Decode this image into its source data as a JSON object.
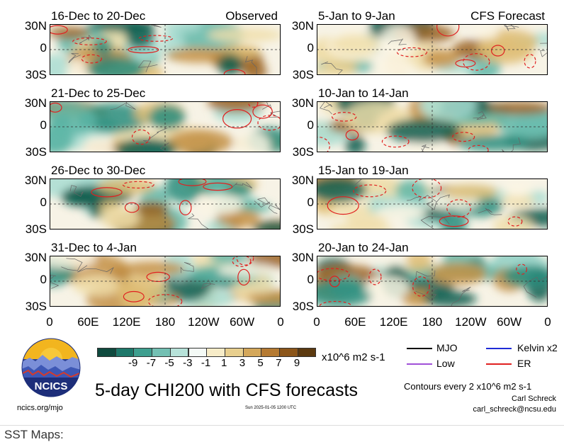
{
  "panels": [
    {
      "title": "16-Dec to 20-Dec",
      "tag": "Observed"
    },
    {
      "title": "5-Jan to 9-Jan",
      "tag": "CFS Forecast"
    },
    {
      "title": "21-Dec to 25-Dec",
      "tag": ""
    },
    {
      "title": "10-Jan to 14-Jan",
      "tag": ""
    },
    {
      "title": "26-Dec to 30-Dec",
      "tag": ""
    },
    {
      "title": "15-Jan to 19-Jan",
      "tag": ""
    },
    {
      "title": "31-Dec to 4-Jan",
      "tag": ""
    },
    {
      "title": "20-Jan to 24-Jan",
      "tag": ""
    }
  ],
  "y_ticks": [
    "30N",
    "0",
    "30S"
  ],
  "x_ticks": [
    "0",
    "60E",
    "120E",
    "180",
    "120W",
    "60W",
    "0"
  ],
  "colorbar": {
    "colors": [
      "#3b2a0c",
      "#0f5e4f",
      "#2a8d7e",
      "#5fb7a8",
      "#a9ddd2",
      "#e8f5f1",
      "#fbf6e4",
      "#f0deaa",
      "#dfbd74",
      "#c49044",
      "#9c6524",
      "#6a4112"
    ],
    "colors_order_note": "",
    "labels": [
      "-9",
      "-7",
      "-5",
      "-3",
      "-1",
      "1",
      "3",
      "5",
      "7",
      "9"
    ],
    "units": "x10^6 m2 s-1"
  },
  "legend": [
    {
      "label": "MJO",
      "color": "#000000"
    },
    {
      "label": "Kelvin x2",
      "color": "#1f2bd6"
    },
    {
      "label": "Low",
      "color": "#a050d8"
    },
    {
      "label": "ER",
      "color": "#e02020"
    }
  ],
  "main_title": "5-day CHI200 with CFS forecasts",
  "contours_note": "Contours every 2 x10^6 m2 s-1",
  "author": "Carl Schreck",
  "email": "carl_schreck@ncsu.edu",
  "website": "ncics.org/mjo",
  "timestamp": "Sun 2025-01-05 1200 UTC",
  "logo_text": "NCICS",
  "next_section": "SST Maps:",
  "chart_data": {
    "type": "heatmap",
    "variable": "CHI200",
    "units": "x10^6 m2 s-1",
    "color_levels": [
      -9,
      -7,
      -5,
      -3,
      -1,
      1,
      3,
      5,
      7,
      9
    ],
    "overlay_contours": [
      "MJO",
      "Kelvin x2",
      "Low",
      "ER"
    ],
    "x_ticks": [
      "0",
      "60E",
      "120E",
      "180",
      "120W",
      "60W",
      "0"
    ],
    "y_ticks": [
      "30N",
      "0",
      "30S"
    ],
    "panel_titles": [
      "16-Dec to 20-Dec",
      "5-Jan to 9-Jan",
      "21-Dec to 25-Dec",
      "10-Jan to 14-Jan",
      "26-Dec to 30-Dec",
      "15-Jan to 19-Jan",
      "31-Dec to 4-Jan",
      "20-Jan to 24-Jan"
    ]
  }
}
